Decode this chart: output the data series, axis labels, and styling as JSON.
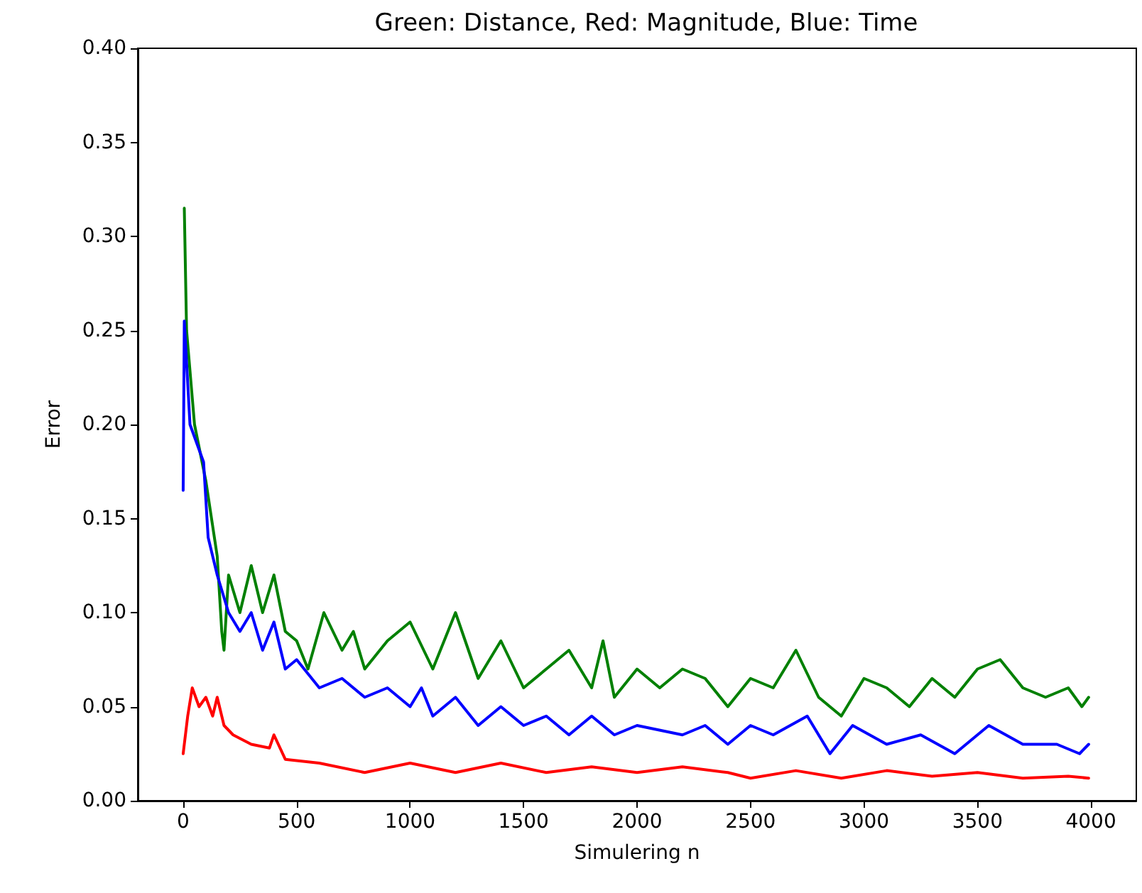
{
  "chart_data": {
    "type": "line",
    "title": "Green: Distance, Red: Magnitude, Blue: Time",
    "xlabel": "Simulering n",
    "ylabel": "Error",
    "xlim": [
      -200,
      4200
    ],
    "xticks": [
      0,
      500,
      1000,
      1500,
      2000,
      2500,
      3000,
      3500,
      4000
    ],
    "ylim": [
      0,
      0.4
    ],
    "yticks": [
      {
        "value": 0,
        "label": "0.00"
      },
      {
        "value": 0.05,
        "label": "0.05"
      },
      {
        "value": 0.1,
        "label": "0.10"
      },
      {
        "value": 0.15,
        "label": "0.15"
      },
      {
        "value": 0.2,
        "label": "0.20"
      },
      {
        "value": 0.25,
        "label": "0.25"
      },
      {
        "value": 0.3,
        "label": "0.30"
      },
      {
        "value": 0.35,
        "label": "0.35"
      },
      {
        "value": 0.4,
        "label": "0.40"
      }
    ],
    "grid": false,
    "marker": "none",
    "line_style": "solid",
    "series": [
      {
        "color": "#008000",
        "x": [
          5,
          15,
          50,
          100,
          150,
          170,
          180,
          200,
          250,
          300,
          350,
          400,
          450,
          500,
          550,
          620,
          700,
          750,
          800,
          900,
          1000,
          1100,
          1200,
          1300,
          1400,
          1500,
          1600,
          1700,
          1800,
          1850,
          1900,
          2000,
          2100,
          2200,
          2300,
          2400,
          2500,
          2600,
          2700,
          2800,
          2900,
          3000,
          3100,
          3200,
          3300,
          3400,
          3500,
          3600,
          3700,
          3800,
          3900,
          3960,
          3990
        ],
        "values": [
          0.315,
          0.25,
          0.2,
          0.17,
          0.13,
          0.09,
          0.08,
          0.12,
          0.1,
          0.125,
          0.1,
          0.12,
          0.09,
          0.085,
          0.07,
          0.1,
          0.08,
          0.09,
          0.07,
          0.085,
          0.095,
          0.07,
          0.1,
          0.065,
          0.085,
          0.06,
          0.07,
          0.08,
          0.06,
          0.085,
          0.055,
          0.07,
          0.06,
          0.07,
          0.065,
          0.05,
          0.065,
          0.06,
          0.08,
          0.055,
          0.045,
          0.065,
          0.06,
          0.05,
          0.065,
          0.055,
          0.07,
          0.075,
          0.06,
          0.055,
          0.06,
          0.05,
          0.055
        ]
      },
      {
        "color": "#ff0000",
        "x": [
          0,
          20,
          40,
          70,
          100,
          130,
          150,
          180,
          220,
          300,
          380,
          400,
          450,
          600,
          800,
          1000,
          1200,
          1400,
          1600,
          1800,
          2000,
          2200,
          2400,
          2500,
          2700,
          2900,
          3100,
          3300,
          3500,
          3700,
          3900,
          3990
        ],
        "values": [
          0.025,
          0.045,
          0.06,
          0.05,
          0.055,
          0.045,
          0.055,
          0.04,
          0.035,
          0.03,
          0.028,
          0.035,
          0.022,
          0.02,
          0.015,
          0.02,
          0.015,
          0.02,
          0.015,
          0.018,
          0.015,
          0.018,
          0.015,
          0.012,
          0.016,
          0.012,
          0.016,
          0.013,
          0.015,
          0.012,
          0.013,
          0.012
        ]
      },
      {
        "color": "#0000ff",
        "x": [
          0,
          5,
          30,
          60,
          90,
          110,
          150,
          200,
          250,
          300,
          350,
          400,
          450,
          500,
          600,
          700,
          800,
          900,
          1000,
          1050,
          1100,
          1200,
          1300,
          1400,
          1500,
          1600,
          1700,
          1800,
          1900,
          2000,
          2200,
          2300,
          2400,
          2500,
          2600,
          2750,
          2850,
          2950,
          3100,
          3250,
          3400,
          3550,
          3700,
          3850,
          3950,
          3990
        ],
        "values": [
          0.165,
          0.255,
          0.2,
          0.19,
          0.18,
          0.14,
          0.12,
          0.1,
          0.09,
          0.1,
          0.08,
          0.095,
          0.07,
          0.075,
          0.06,
          0.065,
          0.055,
          0.06,
          0.05,
          0.06,
          0.045,
          0.055,
          0.04,
          0.05,
          0.04,
          0.045,
          0.035,
          0.045,
          0.035,
          0.04,
          0.035,
          0.04,
          0.03,
          0.04,
          0.035,
          0.045,
          0.025,
          0.04,
          0.03,
          0.035,
          0.025,
          0.04,
          0.03,
          0.03,
          0.025,
          0.03
        ]
      }
    ]
  }
}
